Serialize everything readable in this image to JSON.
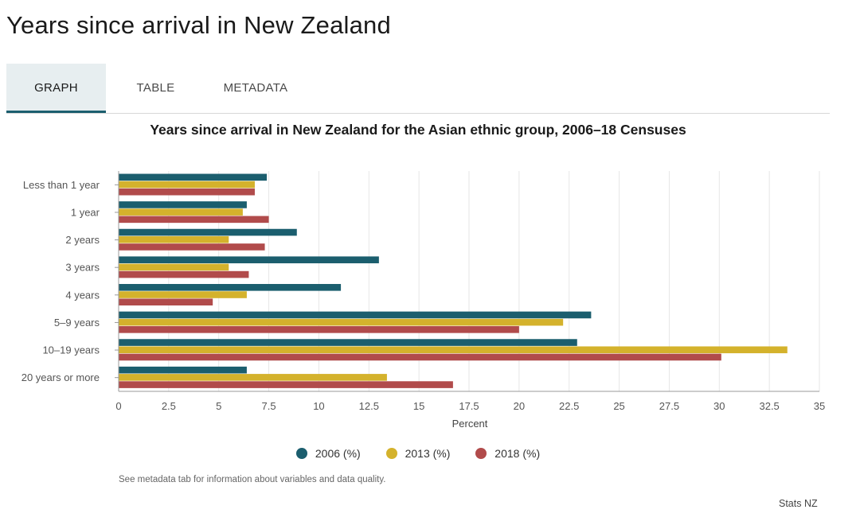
{
  "page": {
    "title": "Years since arrival in New Zealand"
  },
  "tabs": [
    {
      "label": "GRAPH",
      "active": true
    },
    {
      "label": "TABLE",
      "active": false
    },
    {
      "label": "METADATA",
      "active": false
    }
  ],
  "note": "See metadata tab for information about variables and data quality.",
  "credit": "Stats NZ",
  "chart_data": {
    "type": "bar",
    "orientation": "horizontal",
    "title": "Years since arrival in New Zealand for the Asian ethnic group, 2006–18 Censuses",
    "xlabel": "Percent",
    "ylabel": "",
    "xlim": [
      0,
      35
    ],
    "xticks": [
      0,
      2.5,
      5,
      7.5,
      10,
      12.5,
      15,
      17.5,
      20,
      22.5,
      25,
      27.5,
      30,
      32.5,
      35
    ],
    "grid": true,
    "legend_position": "bottom",
    "categories": [
      "Less than 1 year",
      "1 year",
      "2 years",
      "3 years",
      "4 years",
      "5–9 years",
      "10–19 years",
      "20 years or more"
    ],
    "series": [
      {
        "name": "2006 (%)",
        "color": "#1b5e6e",
        "values": [
          7.4,
          6.4,
          8.9,
          13.0,
          11.1,
          23.6,
          22.9,
          6.4
        ]
      },
      {
        "name": "2013 (%)",
        "color": "#d4b22c",
        "values": [
          6.8,
          6.2,
          5.5,
          5.5,
          6.4,
          22.2,
          33.4,
          13.4
        ]
      },
      {
        "name": "2018 (%)",
        "color": "#b14b4b",
        "values": [
          6.8,
          7.5,
          7.3,
          6.5,
          4.7,
          20.0,
          30.1,
          16.7
        ]
      }
    ]
  }
}
